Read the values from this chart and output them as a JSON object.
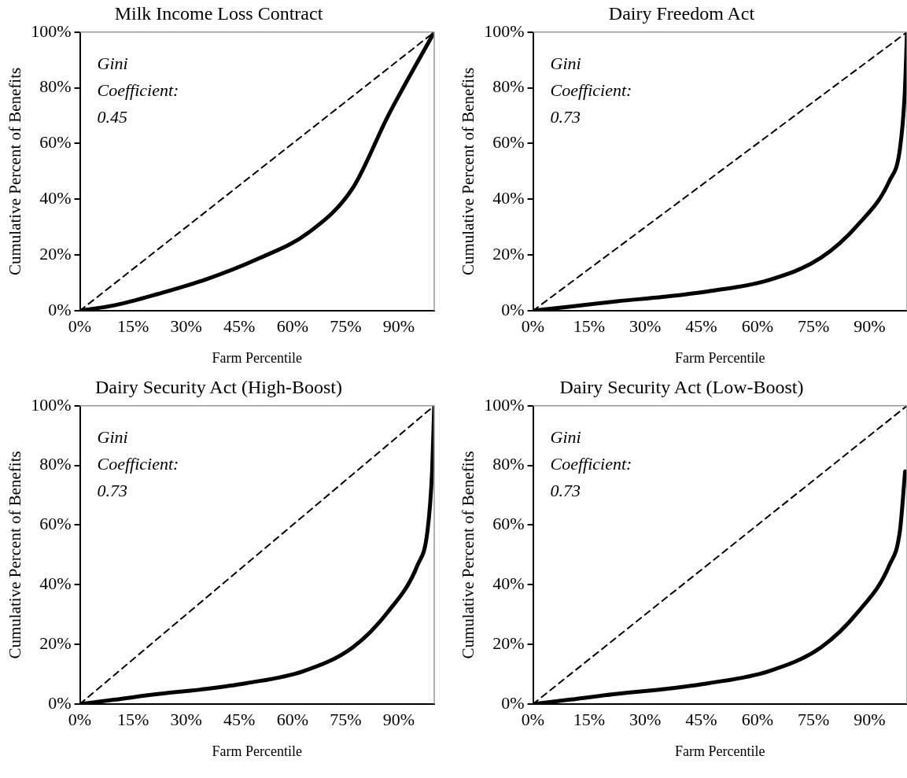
{
  "chart_data": [
    {
      "type": "line",
      "title": "Milk Income Loss Contract",
      "xlabel": "Farm Percentile",
      "ylabel": "Cumulative Percent of Benefits",
      "annotations": [
        "Gini Coefficient: 0.45"
      ],
      "series": [
        {
          "color": "#000000",
          "line_style": "solid",
          "x": [
            0,
            10,
            22,
            35,
            50,
            64.5,
            77,
            87,
            100
          ],
          "values": [
            0,
            2,
            6,
            11,
            18.5,
            28,
            44,
            70,
            100
          ]
        },
        {
          "color": "#000000",
          "line_style": "dashed",
          "x": [
            0,
            100
          ],
          "values": [
            0,
            100
          ]
        }
      ],
      "xlim": [
        0,
        100
      ],
      "ylim": [
        0,
        100
      ],
      "marker": "none",
      "grid": false,
      "legend": false,
      "xticks": [
        {
          "value": 0,
          "label": "0%"
        },
        {
          "value": 15,
          "label": "15%"
        },
        {
          "value": 30,
          "label": "30%"
        },
        {
          "value": 45,
          "label": "45%"
        },
        {
          "value": 60,
          "label": "60%"
        },
        {
          "value": 75,
          "label": "75%"
        },
        {
          "value": 90,
          "label": "90%"
        }
      ],
      "yticks": [
        {
          "value": 0,
          "label": "0%"
        },
        {
          "value": 20,
          "label": "20%"
        },
        {
          "value": 40,
          "label": "40%"
        },
        {
          "value": 60,
          "label": "60%"
        },
        {
          "value": 80,
          "label": "80%"
        },
        {
          "value": 100,
          "label": "100%"
        }
      ]
    },
    {
      "type": "line",
      "title": "Dairy Freedom Act",
      "xlabel": "Farm Percentile",
      "ylabel": "Cumulative Percent of Benefits",
      "annotations": [
        "Gini Coefficient: 0.73"
      ],
      "series": [
        {
          "color": "#000000",
          "line_style": "solid",
          "x": [
            0,
            10,
            22.5,
            35,
            47,
            63,
            77,
            87,
            95.3,
            98.1,
            99.4,
            100
          ],
          "values": [
            0,
            1.5,
            3.4,
            5,
            7,
            11,
            19,
            31,
            46.6,
            58,
            78,
            100
          ]
        },
        {
          "color": "#000000",
          "line_style": "dashed",
          "x": [
            0,
            100
          ],
          "values": [
            0,
            100
          ]
        }
      ],
      "xlim": [
        0,
        100
      ],
      "ylim": [
        0,
        100
      ],
      "marker": "none",
      "grid": false,
      "legend": false,
      "xticks": [
        {
          "value": 0,
          "label": "0%"
        },
        {
          "value": 15,
          "label": "15%"
        },
        {
          "value": 30,
          "label": "30%"
        },
        {
          "value": 45,
          "label": "45%"
        },
        {
          "value": 60,
          "label": "60%"
        },
        {
          "value": 75,
          "label": "75%"
        },
        {
          "value": 90,
          "label": "90%"
        }
      ],
      "yticks": [
        {
          "value": 0,
          "label": "0%"
        },
        {
          "value": 20,
          "label": "20%"
        },
        {
          "value": 40,
          "label": "40%"
        },
        {
          "value": 60,
          "label": "60%"
        },
        {
          "value": 80,
          "label": "80%"
        },
        {
          "value": 100,
          "label": "100%"
        }
      ]
    },
    {
      "type": "line",
      "title": "Dairy Security Act (High-Boost)",
      "xlabel": "Farm Percentile",
      "ylabel": "Cumulative Percent of Benefits",
      "annotations": [
        "Gini Coefficient: 0.73"
      ],
      "series": [
        {
          "color": "#000000",
          "line_style": "solid",
          "x": [
            0,
            10,
            22.5,
            35,
            47,
            63,
            77,
            87,
            95.3,
            98.1,
            99.4,
            100
          ],
          "values": [
            0,
            1.5,
            3.4,
            5,
            7,
            11,
            19,
            31,
            46.6,
            58,
            78,
            100
          ]
        },
        {
          "color": "#000000",
          "line_style": "dashed",
          "x": [
            0,
            100
          ],
          "values": [
            0,
            100
          ]
        }
      ],
      "xlim": [
        0,
        100
      ],
      "ylim": [
        0,
        100
      ],
      "marker": "none",
      "grid": false,
      "legend": false,
      "xticks": [
        {
          "value": 0,
          "label": "0%"
        },
        {
          "value": 15,
          "label": "15%"
        },
        {
          "value": 30,
          "label": "30%"
        },
        {
          "value": 45,
          "label": "45%"
        },
        {
          "value": 60,
          "label": "60%"
        },
        {
          "value": 75,
          "label": "75%"
        },
        {
          "value": 90,
          "label": "90%"
        }
      ],
      "yticks": [
        {
          "value": 0,
          "label": "0%"
        },
        {
          "value": 20,
          "label": "20%"
        },
        {
          "value": 40,
          "label": "40%"
        },
        {
          "value": 60,
          "label": "60%"
        },
        {
          "value": 80,
          "label": "80%"
        },
        {
          "value": 100,
          "label": "100%"
        }
      ]
    },
    {
      "type": "line",
      "title": "Dairy Security Act (Low-Boost)",
      "xlabel": "Farm Percentile",
      "ylabel": "Cumulative Percent of Benefits",
      "annotations": [
        "Gini Coefficient: 0.73"
      ],
      "series": [
        {
          "color": "#000000",
          "line_style": "solid",
          "x": [
            0,
            10,
            22.5,
            35,
            47,
            63,
            77,
            87,
            95.3,
            98.1,
            99.5
          ],
          "values": [
            0,
            1.5,
            3.4,
            5,
            7,
            11,
            19,
            31,
            46.6,
            58,
            78
          ]
        },
        {
          "color": "#000000",
          "line_style": "dashed",
          "x": [
            0,
            100
          ],
          "values": [
            0,
            100
          ]
        }
      ],
      "xlim": [
        0,
        100
      ],
      "ylim": [
        0,
        100
      ],
      "marker": "none",
      "grid": false,
      "legend": false,
      "xticks": [
        {
          "value": 0,
          "label": "0%"
        },
        {
          "value": 15,
          "label": "15%"
        },
        {
          "value": 30,
          "label": "30%"
        },
        {
          "value": 45,
          "label": "45%"
        },
        {
          "value": 60,
          "label": "60%"
        },
        {
          "value": 75,
          "label": "75%"
        },
        {
          "value": 90,
          "label": "90%"
        }
      ],
      "yticks": [
        {
          "value": 0,
          "label": "0%"
        },
        {
          "value": 20,
          "label": "20%"
        },
        {
          "value": 40,
          "label": "40%"
        },
        {
          "value": 60,
          "label": "60%"
        },
        {
          "value": 80,
          "label": "80%"
        },
        {
          "value": 100,
          "label": "100%"
        }
      ]
    }
  ]
}
